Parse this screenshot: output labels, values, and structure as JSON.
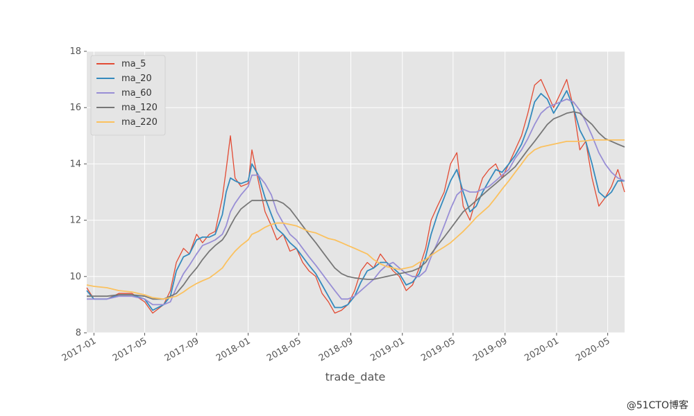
{
  "chart_data": {
    "type": "line",
    "xlabel": "trade_date",
    "ylabel": "",
    "title": "",
    "ylim": [
      8,
      18
    ],
    "xlim": [
      "2016-12-15",
      "2020-06-10"
    ],
    "yticks": [
      8,
      10,
      12,
      14,
      16,
      18
    ],
    "xticks": [
      "2017-01",
      "2017-05",
      "2017-09",
      "2018-01",
      "2018-05",
      "2018-09",
      "2019-01",
      "2019-05",
      "2019-09",
      "2020-01",
      "2020-05"
    ],
    "grid": true,
    "legend_position": "top-left",
    "x": [
      "2016-12-15",
      "2017-01-01",
      "2017-02-01",
      "2017-03-01",
      "2017-04-01",
      "2017-05-01",
      "2017-05-20",
      "2017-06-15",
      "2017-07-01",
      "2017-07-15",
      "2017-08-01",
      "2017-08-15",
      "2017-09-01",
      "2017-09-15",
      "2017-10-01",
      "2017-10-15",
      "2017-11-01",
      "2017-11-10",
      "2017-11-20",
      "2017-12-01",
      "2017-12-15",
      "2018-01-01",
      "2018-01-10",
      "2018-01-25",
      "2018-02-10",
      "2018-02-25",
      "2018-03-10",
      "2018-03-25",
      "2018-04-10",
      "2018-04-25",
      "2018-05-10",
      "2018-05-25",
      "2018-06-10",
      "2018-06-25",
      "2018-07-10",
      "2018-07-25",
      "2018-08-10",
      "2018-08-25",
      "2018-09-10",
      "2018-09-25",
      "2018-10-10",
      "2018-10-25",
      "2018-11-10",
      "2018-11-25",
      "2018-12-10",
      "2018-12-25",
      "2019-01-10",
      "2019-01-25",
      "2019-02-10",
      "2019-02-25",
      "2019-03-10",
      "2019-03-25",
      "2019-04-10",
      "2019-04-25",
      "2019-05-10",
      "2019-05-25",
      "2019-06-10",
      "2019-06-25",
      "2019-07-10",
      "2019-07-25",
      "2019-08-10",
      "2019-08-25",
      "2019-09-10",
      "2019-09-25",
      "2019-10-10",
      "2019-10-25",
      "2019-11-10",
      "2019-11-25",
      "2019-12-10",
      "2019-12-25",
      "2020-01-10",
      "2020-01-25",
      "2020-02-10",
      "2020-02-25",
      "2020-03-10",
      "2020-03-25",
      "2020-04-10",
      "2020-04-25",
      "2020-05-10",
      "2020-05-25",
      "2020-06-10"
    ],
    "series": [
      {
        "name": "ma_5",
        "color": "#e24a33",
        "values": [
          9.6,
          9.2,
          9.2,
          9.4,
          9.4,
          9.1,
          8.7,
          9.0,
          9.5,
          10.5,
          11.0,
          10.8,
          11.5,
          11.2,
          11.5,
          11.6,
          12.8,
          13.8,
          15.0,
          13.5,
          13.2,
          13.3,
          14.5,
          13.4,
          12.3,
          11.8,
          11.3,
          11.5,
          10.9,
          11.0,
          10.5,
          10.2,
          10.0,
          9.4,
          9.1,
          8.7,
          8.8,
          9.0,
          9.5,
          10.2,
          10.5,
          10.3,
          10.8,
          10.5,
          10.2,
          10.0,
          9.5,
          9.7,
          10.3,
          11.0,
          12.0,
          12.5,
          13.0,
          14.0,
          14.4,
          12.5,
          12.0,
          12.8,
          13.5,
          13.8,
          14.0,
          13.5,
          14.0,
          14.5,
          15.0,
          15.8,
          16.8,
          17.0,
          16.5,
          16.0,
          16.5,
          17.0,
          16.0,
          14.5,
          14.8,
          13.5,
          12.5,
          12.8,
          13.2,
          13.8,
          13.0
        ]
      },
      {
        "name": "ma_20",
        "color": "#348abd",
        "values": [
          9.5,
          9.2,
          9.2,
          9.35,
          9.35,
          9.2,
          8.8,
          9.0,
          9.3,
          10.2,
          10.7,
          10.8,
          11.3,
          11.4,
          11.4,
          11.5,
          12.2,
          13.0,
          13.5,
          13.4,
          13.3,
          13.4,
          14.0,
          13.6,
          12.8,
          12.2,
          11.7,
          11.5,
          11.2,
          11.0,
          10.7,
          10.4,
          10.1,
          9.7,
          9.3,
          8.9,
          8.9,
          9.0,
          9.3,
          9.8,
          10.2,
          10.3,
          10.5,
          10.5,
          10.3,
          10.1,
          9.7,
          9.8,
          10.1,
          10.7,
          11.5,
          12.2,
          12.8,
          13.4,
          13.8,
          13.0,
          12.3,
          12.5,
          13.0,
          13.4,
          13.8,
          13.7,
          14.0,
          14.3,
          14.7,
          15.3,
          16.2,
          16.5,
          16.3,
          15.8,
          16.2,
          16.6,
          16.0,
          15.2,
          14.8,
          14.0,
          13.0,
          12.8,
          13.0,
          13.4,
          13.4
        ]
      },
      {
        "name": "ma_60",
        "color": "#988ed5",
        "values": [
          9.2,
          9.2,
          9.2,
          9.3,
          9.3,
          9.2,
          9.0,
          9.0,
          9.1,
          9.6,
          10.1,
          10.4,
          10.8,
          11.1,
          11.2,
          11.3,
          11.5,
          11.8,
          12.3,
          12.6,
          12.9,
          13.2,
          13.6,
          13.6,
          13.3,
          12.9,
          12.3,
          11.9,
          11.5,
          11.3,
          11.0,
          10.7,
          10.4,
          10.1,
          9.8,
          9.5,
          9.2,
          9.2,
          9.3,
          9.5,
          9.7,
          9.9,
          10.2,
          10.4,
          10.5,
          10.3,
          10.1,
          10.0,
          10.0,
          10.2,
          10.7,
          11.2,
          11.8,
          12.4,
          12.9,
          13.1,
          13.0,
          13.0,
          13.1,
          13.2,
          13.4,
          13.6,
          13.8,
          14.2,
          14.5,
          14.9,
          15.4,
          15.8,
          16.0,
          16.1,
          16.2,
          16.3,
          16.2,
          15.9,
          15.5,
          15.0,
          14.4,
          14.0,
          13.7,
          13.5,
          13.4
        ]
      },
      {
        "name": "ma_120",
        "color": "#777777",
        "values": [
          9.3,
          9.3,
          9.3,
          9.35,
          9.35,
          9.3,
          9.2,
          9.2,
          9.3,
          9.4,
          9.7,
          10.0,
          10.3,
          10.6,
          10.9,
          11.1,
          11.3,
          11.5,
          11.8,
          12.1,
          12.4,
          12.6,
          12.7,
          12.7,
          12.7,
          12.7,
          12.7,
          12.6,
          12.4,
          12.1,
          11.8,
          11.5,
          11.2,
          10.9,
          10.6,
          10.3,
          10.1,
          10.0,
          9.95,
          9.92,
          9.9,
          9.9,
          9.95,
          10.0,
          10.05,
          10.1,
          10.15,
          10.2,
          10.3,
          10.5,
          10.8,
          11.1,
          11.4,
          11.7,
          12.0,
          12.3,
          12.5,
          12.7,
          12.9,
          13.1,
          13.3,
          13.5,
          13.7,
          13.9,
          14.2,
          14.5,
          14.8,
          15.1,
          15.4,
          15.6,
          15.7,
          15.8,
          15.85,
          15.8,
          15.6,
          15.4,
          15.1,
          14.9,
          14.8,
          14.7,
          14.6
        ]
      },
      {
        "name": "ma_220",
        "color": "#fbc15e",
        "values": [
          9.7,
          9.65,
          9.6,
          9.5,
          9.45,
          9.35,
          9.25,
          9.2,
          9.25,
          9.3,
          9.45,
          9.6,
          9.75,
          9.85,
          9.95,
          10.1,
          10.3,
          10.5,
          10.7,
          10.9,
          11.1,
          11.3,
          11.5,
          11.6,
          11.75,
          11.85,
          11.9,
          11.9,
          11.85,
          11.8,
          11.7,
          11.6,
          11.55,
          11.45,
          11.35,
          11.3,
          11.2,
          11.1,
          11.0,
          10.9,
          10.8,
          10.6,
          10.45,
          10.35,
          10.3,
          10.25,
          10.3,
          10.35,
          10.5,
          10.6,
          10.75,
          10.9,
          11.05,
          11.2,
          11.4,
          11.6,
          11.85,
          12.1,
          12.3,
          12.5,
          12.8,
          13.1,
          13.4,
          13.7,
          14.0,
          14.3,
          14.5,
          14.6,
          14.65,
          14.7,
          14.75,
          14.8,
          14.8,
          14.8,
          14.82,
          14.85,
          14.85,
          14.85,
          14.85,
          14.85,
          14.85
        ]
      }
    ]
  },
  "watermark": "@51CTO博客"
}
